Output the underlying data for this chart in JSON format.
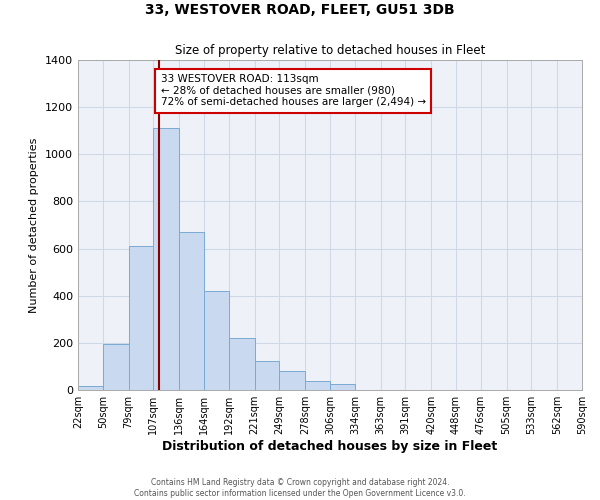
{
  "title": "33, WESTOVER ROAD, FLEET, GU51 3DB",
  "subtitle": "Size of property relative to detached houses in Fleet",
  "xlabel": "Distribution of detached houses by size in Fleet",
  "ylabel": "Number of detached properties",
  "footer_line1": "Contains HM Land Registry data © Crown copyright and database right 2024.",
  "footer_line2": "Contains public sector information licensed under the Open Government Licence v3.0.",
  "bin_labels": [
    "22sqm",
    "50sqm",
    "79sqm",
    "107sqm",
    "136sqm",
    "164sqm",
    "192sqm",
    "221sqm",
    "249sqm",
    "278sqm",
    "306sqm",
    "334sqm",
    "363sqm",
    "391sqm",
    "420sqm",
    "448sqm",
    "476sqm",
    "505sqm",
    "533sqm",
    "562sqm",
    "590sqm"
  ],
  "bar_values": [
    15,
    195,
    610,
    1110,
    670,
    420,
    220,
    125,
    80,
    38,
    25,
    0,
    0,
    0,
    0,
    0,
    0,
    0,
    0,
    0,
    0
  ],
  "bar_color": "#c9d9f0",
  "bar_edge_color": "#7aaad4",
  "vline_x": 113,
  "vline_color": "#8b0000",
  "annotation_line1": "33 WESTOVER ROAD: 113sqm",
  "annotation_line2": "← 28% of detached houses are smaller (980)",
  "annotation_line3": "72% of semi-detached houses are larger (2,494) →",
  "annotation_box_facecolor": "#ffffff",
  "annotation_box_edgecolor": "#cc0000",
  "ylim": [
    0,
    1400
  ],
  "yticks": [
    0,
    200,
    400,
    600,
    800,
    1000,
    1200,
    1400
  ],
  "bin_edges_sqm": [
    22,
    50,
    79,
    107,
    136,
    164,
    192,
    221,
    249,
    278,
    306,
    334,
    363,
    391,
    420,
    448,
    476,
    505,
    533,
    562,
    590
  ],
  "plot_bg_color": "#eef2f8",
  "grid_color": "#d0d8e8",
  "figsize": [
    6.0,
    5.0
  ],
  "dpi": 100
}
